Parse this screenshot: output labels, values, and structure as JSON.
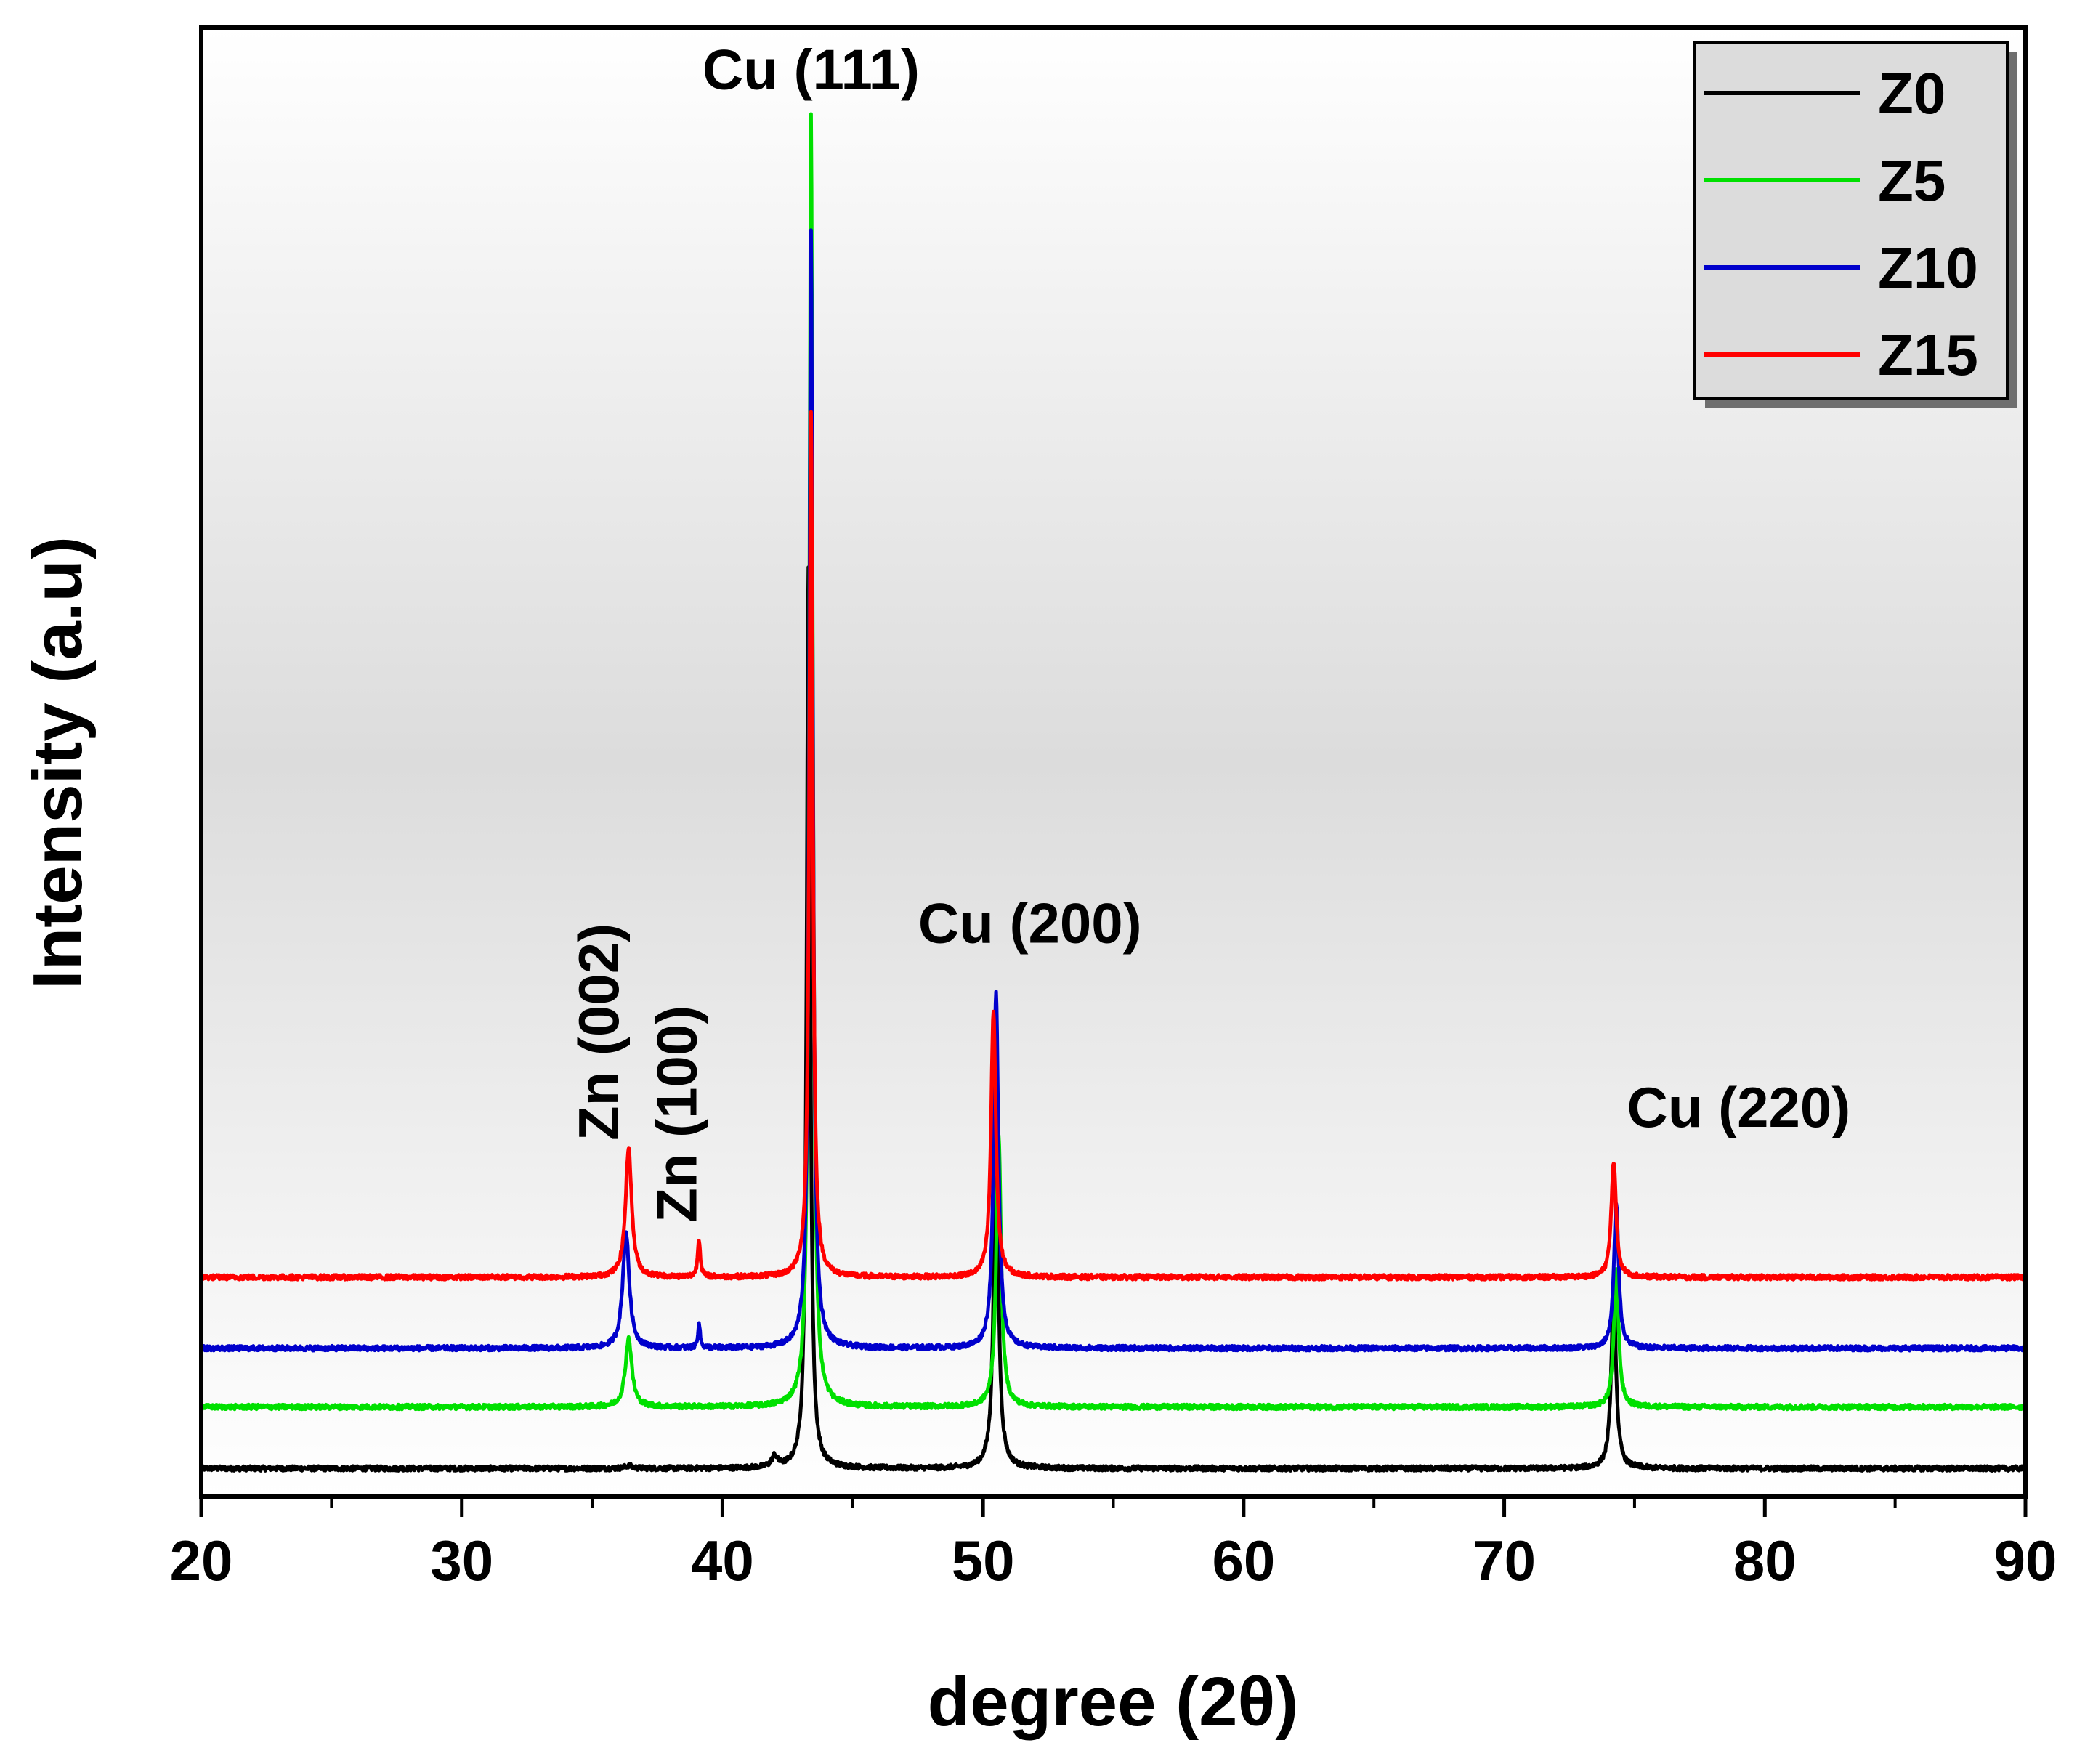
{
  "chart_data": {
    "type": "line",
    "title": "",
    "xlabel": "degree (2θ)",
    "ylabel": "Intensity (a.u)",
    "xlim": [
      20,
      90
    ],
    "ylim": [
      0,
      100
    ],
    "xticks": [
      20,
      30,
      40,
      50,
      60,
      70,
      80,
      90
    ],
    "xtick_labels": [
      "20",
      "30",
      "40",
      "50",
      "60",
      "70",
      "80",
      "90"
    ],
    "y_ticks_shown": false,
    "grid": false,
    "background": "vertical grey gradient",
    "legend_position": "top-right",
    "series": [
      {
        "name": "Z0",
        "color": "#000000",
        "baseline": 1.0,
        "peaks": [
          {
            "x": 36.4,
            "height": 0.2,
            "width": 0.3
          },
          {
            "x": 42.0,
            "height": 0.8,
            "width": 0.25
          },
          {
            "x": 43.3,
            "height": 66.0,
            "width": 0.16
          },
          {
            "x": 50.5,
            "height": 24.0,
            "width": 0.22
          },
          {
            "x": 74.2,
            "height": 13.0,
            "width": 0.22
          }
        ]
      },
      {
        "name": "Z5",
        "color": "#00e000",
        "baseline": 5.5,
        "peaks": [
          {
            "x": 36.4,
            "height": 5.0,
            "width": 0.3
          },
          {
            "x": 43.4,
            "height": 94.5,
            "width": 0.16
          },
          {
            "x": 50.6,
            "height": 20.0,
            "width": 0.22
          },
          {
            "x": 74.3,
            "height": 10.0,
            "width": 0.22
          }
        ]
      },
      {
        "name": "Z10",
        "color": "#0000cc",
        "baseline": 9.8,
        "peaks": [
          {
            "x": 36.3,
            "height": 8.5,
            "width": 0.3
          },
          {
            "x": 39.1,
            "height": 1.8,
            "width": 0.1
          },
          {
            "x": 43.4,
            "height": 82.0,
            "width": 0.16
          },
          {
            "x": 50.5,
            "height": 26.0,
            "width": 0.22
          },
          {
            "x": 74.3,
            "height": 10.5,
            "width": 0.22
          }
        ]
      },
      {
        "name": "Z15",
        "color": "#ff0000",
        "baseline": 15.0,
        "peaks": [
          {
            "x": 36.4,
            "height": 9.5,
            "width": 0.28
          },
          {
            "x": 39.1,
            "height": 2.8,
            "width": 0.12
          },
          {
            "x": 43.4,
            "height": 63.5,
            "width": 0.16
          },
          {
            "x": 50.4,
            "height": 19.5,
            "width": 0.22
          },
          {
            "x": 74.2,
            "height": 8.5,
            "width": 0.22
          }
        ]
      }
    ],
    "annotations": [
      {
        "text": "Cu (111)",
        "x": 43.4,
        "y": 102.0,
        "rotate": false
      },
      {
        "text": "Cu (200)",
        "x": 51.8,
        "y": 39.5,
        "rotate": false
      },
      {
        "text": "Cu (220)",
        "x": 79.0,
        "y": 26.0,
        "rotate": false
      },
      {
        "text": "Zn (002)",
        "x": 36.0,
        "y": 25.0,
        "rotate": true
      },
      {
        "text": "Zn (100)",
        "x": 39.0,
        "y": 19.0,
        "rotate": true
      }
    ]
  }
}
